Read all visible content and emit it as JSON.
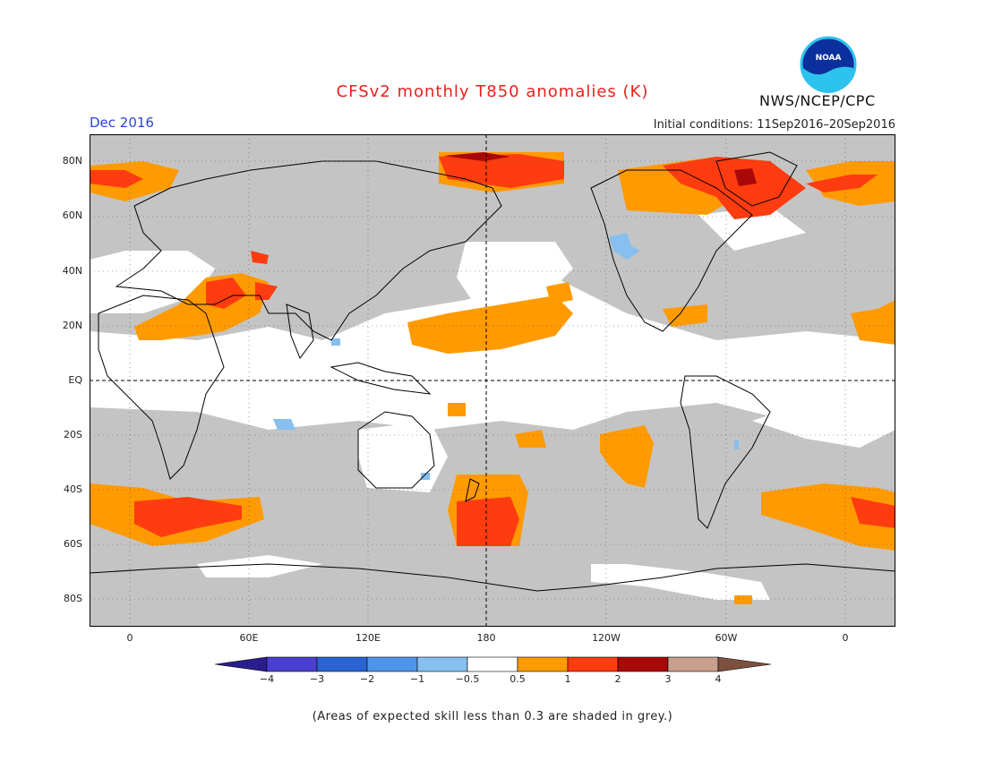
{
  "header": {
    "title": "CFSv2 monthly T850 anomalies (K)",
    "month": "Dec 2016",
    "initial_conditions": "Initial conditions: 11Sep2016–20Sep2016",
    "agency": "NWS/NCEP/CPC",
    "logo_text": "NOAA"
  },
  "map": {
    "lat_labels": [
      "80N",
      "60N",
      "40N",
      "20N",
      "EQ",
      "20S",
      "40S",
      "60S",
      "80S"
    ],
    "lon_labels": [
      "0",
      "60E",
      "120E",
      "180",
      "120W",
      "60W",
      "0"
    ],
    "colors": {
      "skill_grey": "#c4c4c4",
      "land_line": "#000000"
    }
  },
  "colorbar": {
    "labels": [
      "−4",
      "−3",
      "−2",
      "−1",
      "−0.5",
      "0.5",
      "1",
      "2",
      "3",
      "4"
    ],
    "bins": [
      {
        "range": "< -4",
        "color": "#2a1e8e"
      },
      {
        "range": "-4 to -3",
        "color": "#4a3fd0"
      },
      {
        "range": "-3 to -2",
        "color": "#2a64d2"
      },
      {
        "range": "-2 to -1",
        "color": "#4f94e8"
      },
      {
        "range": "-1 to -0.5",
        "color": "#86bff0"
      },
      {
        "range": "-0.5 to 0.5",
        "color": "#ffffff"
      },
      {
        "range": "0.5 to 1",
        "color": "#ff9a00"
      },
      {
        "range": "1 to 2",
        "color": "#ff3c10"
      },
      {
        "range": "2 to 3",
        "color": "#a80808"
      },
      {
        "range": "3 to 4",
        "color": "#c99f8e"
      },
      {
        "range": "> 4",
        "color": "#7e5040"
      }
    ]
  },
  "footnote": "(Areas of expected skill less than 0.3 are shaded in grey.)"
}
